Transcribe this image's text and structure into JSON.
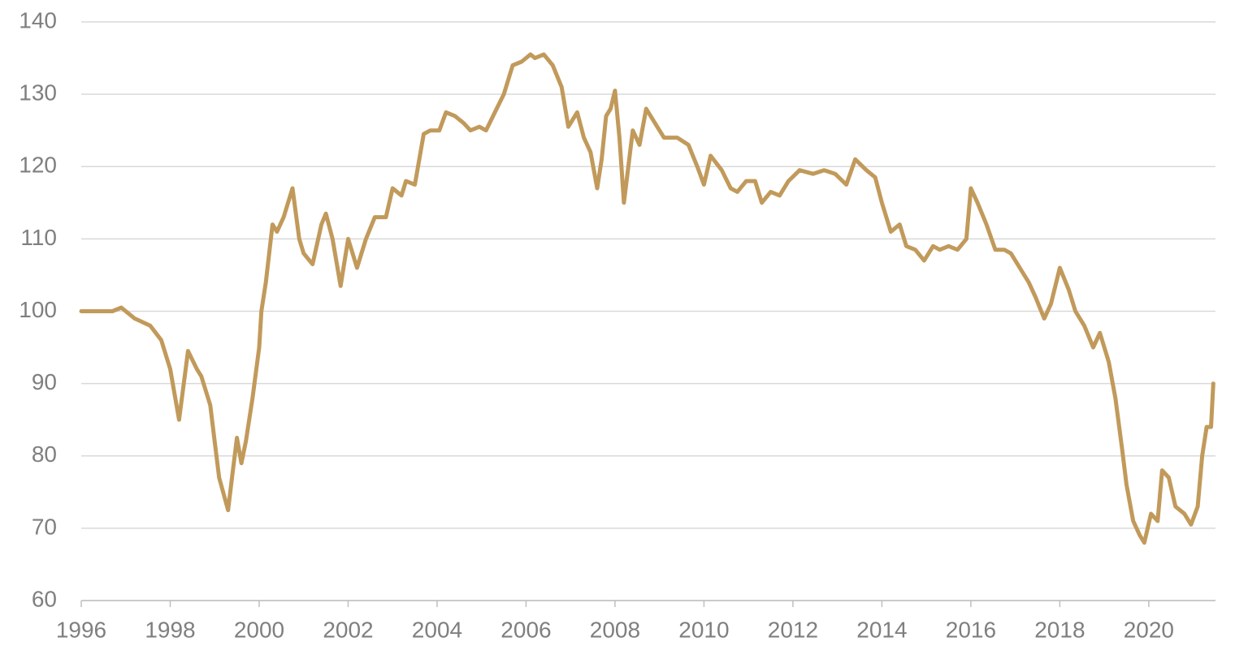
{
  "chart_data": {
    "type": "line",
    "x": [
      1996.0,
      1996.7,
      1996.9,
      1997.2,
      1997.55,
      1997.8,
      1998.0,
      1998.2,
      1998.4,
      1998.6,
      1998.7,
      1998.9,
      1999.0,
      1999.1,
      1999.3,
      1999.4,
      1999.5,
      1999.6,
      1999.7,
      1999.85,
      2000.0,
      2000.05,
      2000.15,
      2000.3,
      2000.4,
      2000.55,
      2000.75,
      2000.9,
      2001.0,
      2001.2,
      2001.4,
      2001.5,
      2001.65,
      2001.83,
      2002.0,
      2002.2,
      2002.4,
      2002.6,
      2002.85,
      2003.0,
      2003.2,
      2003.3,
      2003.5,
      2003.7,
      2003.85,
      2004.05,
      2004.2,
      2004.4,
      2004.6,
      2004.75,
      2004.95,
      2005.1,
      2005.3,
      2005.5,
      2005.7,
      2005.9,
      2006.1,
      2006.2,
      2006.4,
      2006.6,
      2006.8,
      2006.95,
      2007.15,
      2007.3,
      2007.45,
      2007.6,
      2007.7,
      2007.8,
      2007.9,
      2008.0,
      2008.1,
      2008.2,
      2008.4,
      2008.55,
      2008.7,
      2008.9,
      2009.1,
      2009.4,
      2009.65,
      2009.85,
      2010.0,
      2010.15,
      2010.4,
      2010.6,
      2010.75,
      2010.95,
      2011.15,
      2011.3,
      2011.5,
      2011.7,
      2011.9,
      2012.15,
      2012.45,
      2012.7,
      2012.95,
      2013.2,
      2013.4,
      2013.65,
      2013.85,
      2014.0,
      2014.2,
      2014.4,
      2014.55,
      2014.75,
      2014.95,
      2015.15,
      2015.3,
      2015.5,
      2015.7,
      2015.9,
      2016.0,
      2016.15,
      2016.35,
      2016.55,
      2016.75,
      2016.9,
      2017.1,
      2017.3,
      2017.45,
      2017.65,
      2017.8,
      2018.0,
      2018.2,
      2018.35,
      2018.55,
      2018.75,
      2018.9,
      2019.1,
      2019.25,
      2019.4,
      2019.5,
      2019.65,
      2019.8,
      2019.9,
      2020.05,
      2020.2,
      2020.3,
      2020.45,
      2020.6,
      2020.8,
      2020.95,
      2021.1,
      2021.2,
      2021.3,
      2021.4,
      2021.45
    ],
    "series": [
      {
        "color": "#c19a5b",
        "values": [
          100,
          100,
          100.5,
          99,
          98,
          96,
          92,
          85,
          94.5,
          92,
          91,
          87,
          82,
          77,
          72.5,
          77.5,
          82.5,
          79,
          82,
          88,
          95,
          100,
          104,
          112,
          111,
          113,
          117,
          110,
          108,
          106.5,
          112,
          113.5,
          110,
          103.5,
          110,
          106,
          110,
          113,
          113,
          117,
          116,
          118,
          117.5,
          124.5,
          125,
          125,
          127.5,
          127,
          126,
          125,
          125.5,
          125,
          127.5,
          130,
          134,
          134.5,
          135.5,
          135,
          135.5,
          134,
          131,
          125.5,
          127.5,
          124,
          122,
          117,
          121,
          127,
          128,
          130.5,
          124,
          115,
          125,
          123,
          128,
          126,
          124,
          124,
          123,
          120,
          117.5,
          121.5,
          119.5,
          117,
          116.5,
          118,
          118,
          115,
          116.5,
          116,
          118,
          119.5,
          119,
          119.5,
          119,
          117.5,
          121,
          119.5,
          118.5,
          115,
          111,
          112,
          109,
          108.5,
          107,
          109,
          108.5,
          109,
          108.5,
          110,
          117,
          115,
          112,
          108.5,
          108.5,
          108,
          106,
          104,
          102,
          99,
          101,
          106,
          103,
          100,
          98,
          95,
          97,
          93,
          88,
          81,
          76,
          71,
          69,
          68,
          72,
          71,
          78,
          77,
          73,
          72,
          70.5,
          73,
          80,
          84,
          84,
          90
        ]
      }
    ],
    "xlim": [
      1996,
      2021.5
    ],
    "xticks": [
      1996,
      1998,
      2000,
      2002,
      2004,
      2006,
      2008,
      2010,
      2012,
      2014,
      2016,
      2018,
      2020
    ],
    "ylim": [
      60,
      140
    ],
    "yticks": [
      60,
      70,
      80,
      90,
      100,
      110,
      120,
      130,
      140
    ],
    "grid": true
  }
}
